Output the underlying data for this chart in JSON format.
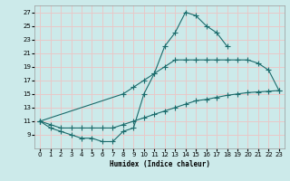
{
  "xlabel": "Humidex (Indice chaleur)",
  "bg_color": "#cceaea",
  "grid_color": "#e8c8c8",
  "line_color": "#1a6b6b",
  "xlim": [
    -0.5,
    23.5
  ],
  "ylim": [
    7,
    28
  ],
  "xticks": [
    0,
    1,
    2,
    3,
    4,
    5,
    6,
    7,
    8,
    9,
    10,
    11,
    12,
    13,
    14,
    15,
    16,
    17,
    18,
    19,
    20,
    21,
    22,
    23
  ],
  "yticks": [
    9,
    11,
    13,
    15,
    17,
    19,
    21,
    23,
    25,
    27
  ],
  "line1_x": [
    0,
    1,
    2,
    3,
    4,
    5,
    6,
    7,
    8,
    9,
    10,
    11,
    12,
    13,
    14,
    15,
    16,
    17,
    18
  ],
  "line1_y": [
    11,
    10,
    9.5,
    9,
    8.5,
    8.5,
    8,
    8,
    9.5,
    10,
    15,
    18,
    22,
    24,
    27,
    26.5,
    25,
    24,
    22
  ],
  "line2_x": [
    0,
    8,
    9,
    10,
    11,
    12,
    13,
    14,
    15,
    16,
    17,
    18,
    19,
    20,
    21,
    22,
    23
  ],
  "line2_y": [
    11,
    15,
    16,
    17,
    18,
    19,
    20,
    20,
    20,
    20,
    20,
    20,
    20,
    20,
    19.5,
    18.5,
    15.5
  ],
  "line3_x": [
    0,
    1,
    2,
    3,
    4,
    5,
    6,
    7,
    8,
    9,
    10,
    11,
    12,
    13,
    14,
    15,
    16,
    17,
    18,
    19,
    20,
    21,
    22,
    23
  ],
  "line3_y": [
    11,
    10.5,
    10,
    10,
    10,
    10,
    10,
    10,
    10.5,
    11,
    11.5,
    12,
    12.5,
    13,
    13.5,
    14,
    14.2,
    14.5,
    14.8,
    15,
    15.2,
    15.3,
    15.4,
    15.5
  ]
}
